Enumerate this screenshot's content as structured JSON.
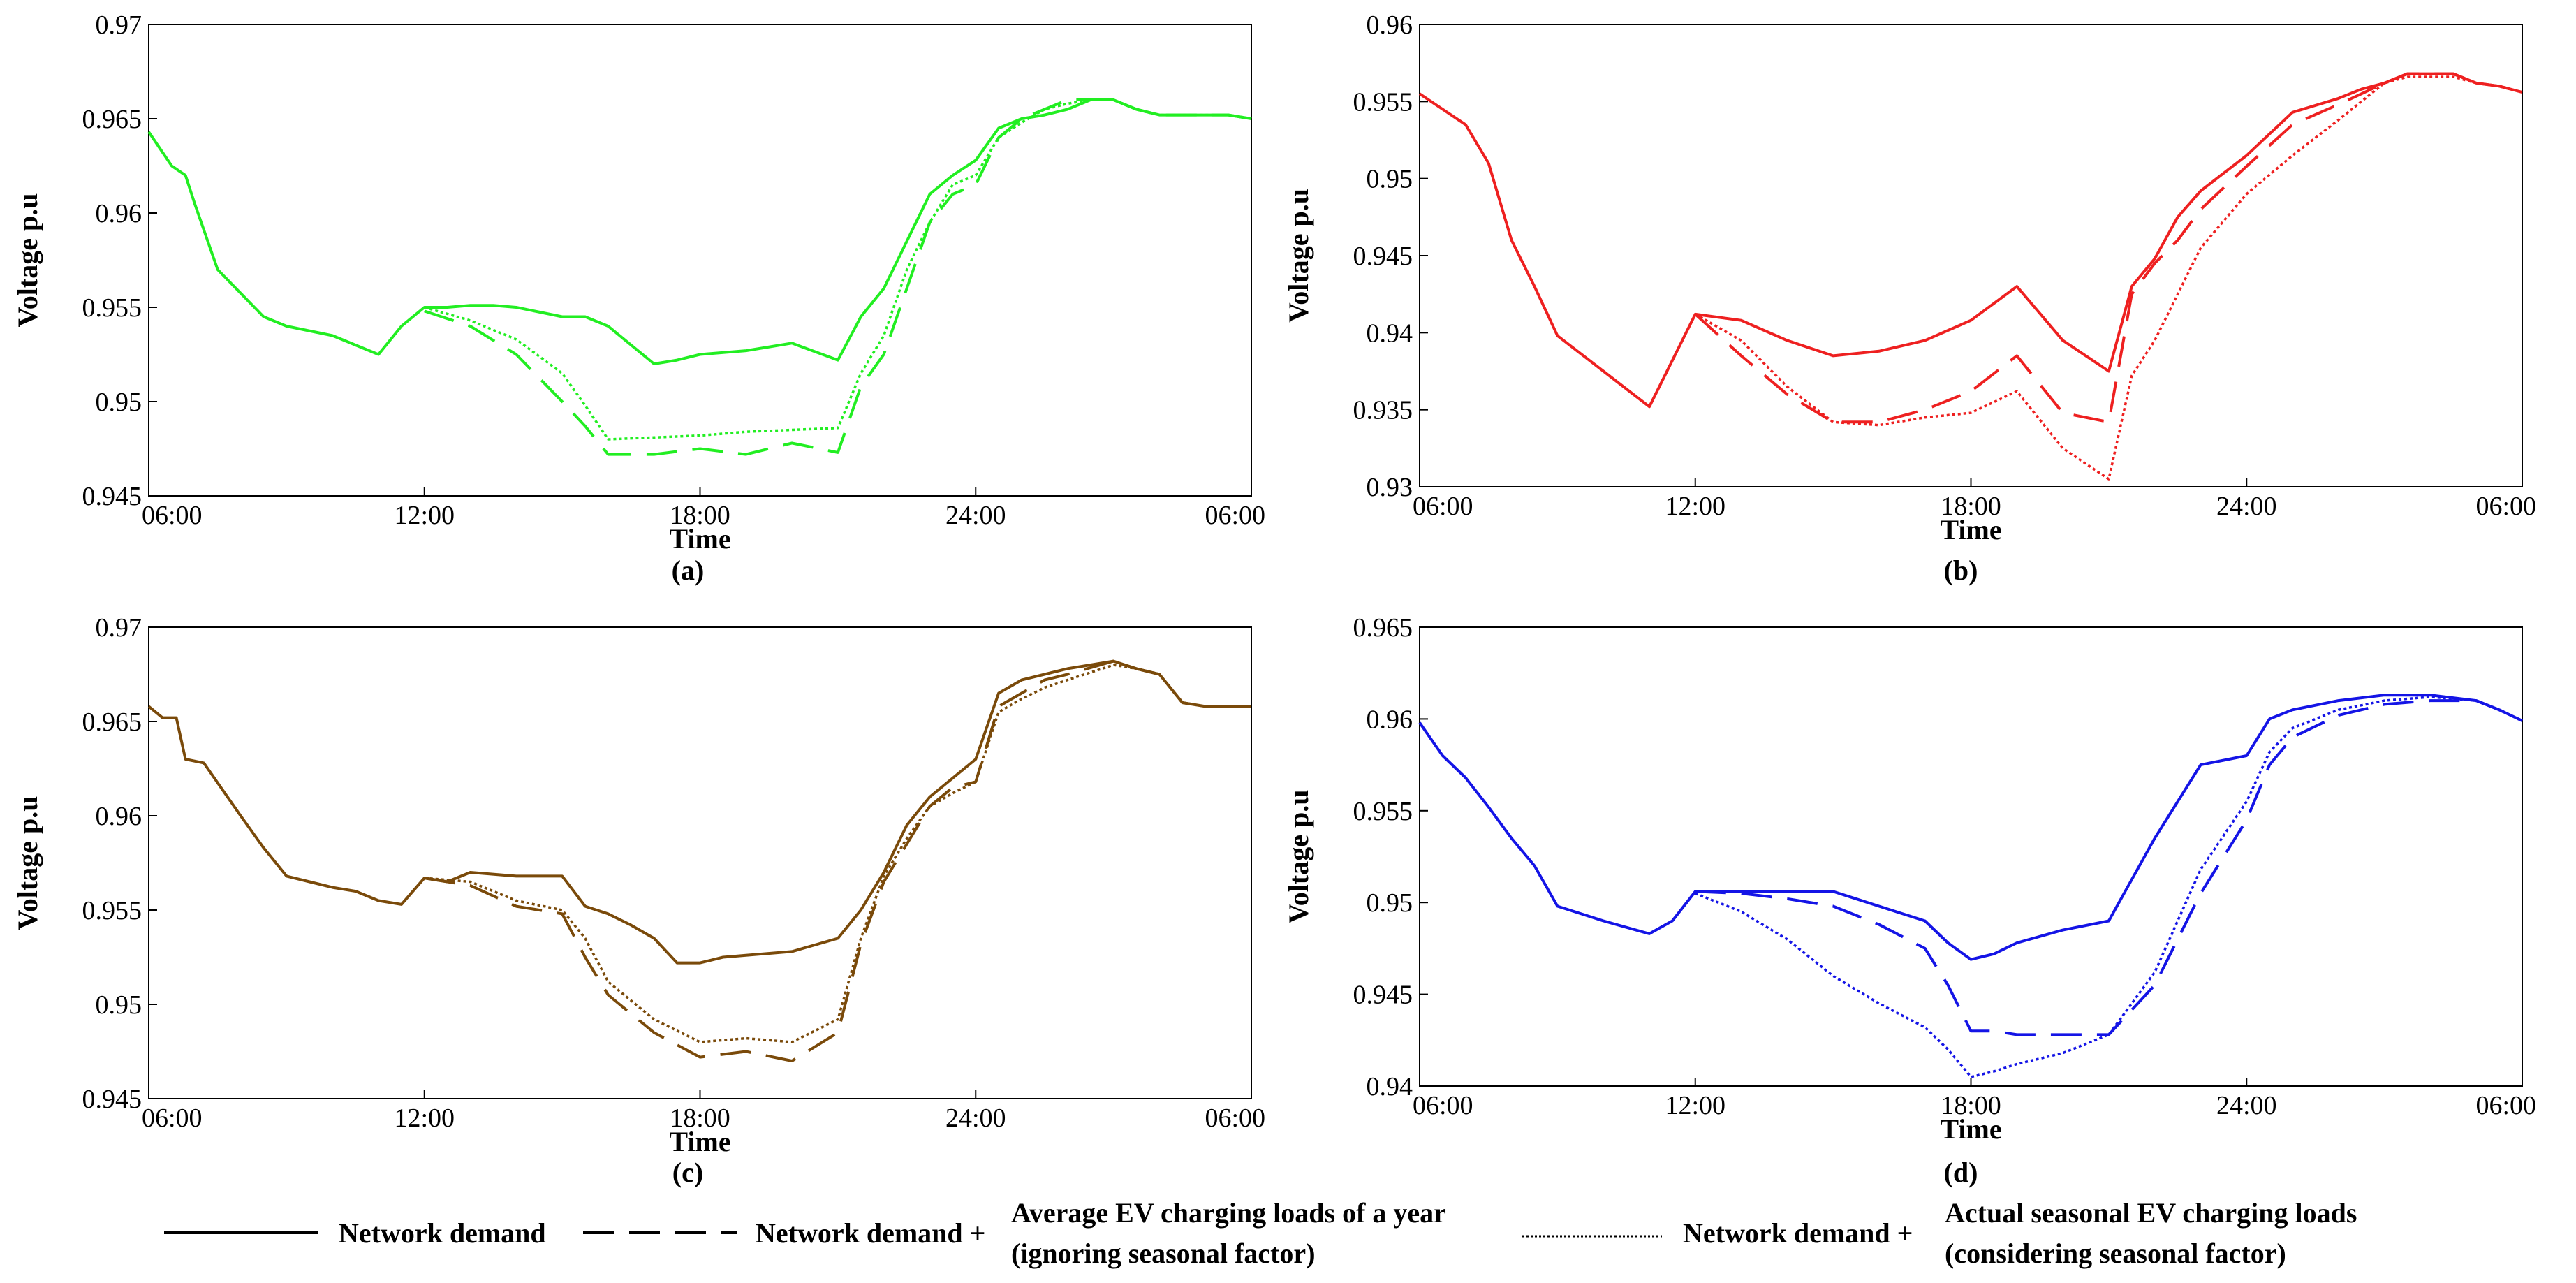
{
  "legend": {
    "item1": {
      "label": "Network demand"
    },
    "item2": {
      "prefix": "Network demand +",
      "line1": "Average EV charging loads of a year",
      "line2": "(ignoring seasonal factor)"
    },
    "item3": {
      "prefix": "Network demand +",
      "line1": "Actual seasonal EV charging loads",
      "line2": "(considering seasonal factor)"
    }
  },
  "chart_data": [
    {
      "type": "line",
      "panel": "(a)",
      "color": "#22ee22",
      "xlabel": "Time",
      "ylabel": "Voltage  p.u",
      "xticks": [
        "06:00",
        "12:00",
        "18:00",
        "24:00",
        "06:00"
      ],
      "xlim": [
        0,
        24
      ],
      "ylim": [
        0.945,
        0.97
      ],
      "yticks": [
        "0.945",
        "0.95",
        "0.955",
        "0.96",
        "0.965",
        "0.97"
      ],
      "series": [
        {
          "name": "Network demand",
          "dash": "solid",
          "x": [
            0,
            0.5,
            0.8,
            1,
            1.5,
            2.5,
            3,
            4,
            5,
            5.5,
            6,
            6.5,
            7,
            7.5,
            8,
            9,
            9.5,
            10,
            10.5,
            11,
            11.5,
            12,
            13,
            14,
            15,
            15.5,
            16,
            16.5,
            17,
            17.5,
            18,
            18.5,
            19,
            19.5,
            20,
            20.5,
            21,
            21.5,
            22,
            22.5,
            23,
            23.5,
            24
          ],
          "y": [
            0.9643,
            0.9625,
            0.962,
            0.9605,
            0.957,
            0.9545,
            0.954,
            0.9535,
            0.9525,
            0.954,
            0.955,
            0.955,
            0.9551,
            0.9551,
            0.955,
            0.9545,
            0.9545,
            0.954,
            0.953,
            0.952,
            0.9522,
            0.9525,
            0.9527,
            0.9531,
            0.9522,
            0.9545,
            0.956,
            0.9585,
            0.961,
            0.962,
            0.9628,
            0.9645,
            0.965,
            0.9652,
            0.9655,
            0.966,
            0.966,
            0.9655,
            0.9652,
            0.9652,
            0.9652,
            0.9652,
            0.965
          ]
        },
        {
          "name": "Average EV charging loads of a year",
          "dash": "dashed",
          "x": [
            6,
            7,
            8,
            9,
            9.5,
            10,
            11,
            12,
            13,
            14,
            15,
            15.5,
            16,
            16.5,
            17,
            17.5,
            18,
            18.5,
            19,
            19.5,
            20,
            20.5,
            21,
            21.5,
            22,
            22.5,
            23,
            23.5,
            24
          ],
          "y": [
            0.9548,
            0.954,
            0.9525,
            0.95,
            0.9487,
            0.9472,
            0.9472,
            0.9475,
            0.9472,
            0.9478,
            0.9473,
            0.9508,
            0.9525,
            0.956,
            0.9595,
            0.961,
            0.9615,
            0.964,
            0.965,
            0.9655,
            0.966,
            0.966,
            0.966,
            0.9655,
            0.9652,
            0.9652,
            0.9652,
            0.9652,
            0.965
          ]
        },
        {
          "name": "Actual seasonal EV charging loads",
          "dash": "dotted",
          "x": [
            6,
            7,
            8,
            9,
            9.5,
            10,
            11,
            12,
            13,
            14,
            15,
            15.5,
            16,
            16.5,
            17,
            17.5,
            18,
            18.5,
            19,
            19.5,
            20,
            20.5,
            21,
            21.5,
            22,
            22.5,
            23,
            23.5,
            24
          ],
          "y": [
            0.955,
            0.9543,
            0.9533,
            0.9515,
            0.9498,
            0.948,
            0.9481,
            0.9482,
            0.9484,
            0.9485,
            0.9486,
            0.9515,
            0.9535,
            0.957,
            0.9595,
            0.9615,
            0.962,
            0.964,
            0.9648,
            0.9655,
            0.9658,
            0.966,
            0.966,
            0.9655,
            0.9652,
            0.9652,
            0.9652,
            0.9652,
            0.965
          ]
        }
      ]
    },
    {
      "type": "line",
      "panel": "(b)",
      "color": "#ee2020",
      "xlabel": "Time",
      "ylabel": "Voltage  p.u",
      "xticks": [
        "06:00",
        "12:00",
        "18:00",
        "24:00",
        "06:00"
      ],
      "xlim": [
        0,
        24
      ],
      "ylim": [
        0.93,
        0.96
      ],
      "yticks": [
        "0.93",
        "0.935",
        "0.94",
        "0.945",
        "0.95",
        "0.955",
        "0.96"
      ],
      "series": [
        {
          "name": "Network demand",
          "dash": "solid",
          "x": [
            0,
            0.5,
            1,
            1.5,
            2,
            2.5,
            3,
            4,
            5,
            6,
            7,
            8,
            9,
            10,
            11,
            12,
            13,
            14,
            15,
            15.5,
            16,
            16.5,
            17,
            18,
            19,
            20,
            20.5,
            21,
            21.5,
            22,
            22.5,
            23,
            23.5,
            24
          ],
          "y": [
            0.9555,
            0.9545,
            0.9535,
            0.951,
            0.946,
            0.943,
            0.9398,
            0.9375,
            0.9352,
            0.9412,
            0.9408,
            0.9395,
            0.9385,
            0.9388,
            0.9395,
            0.9408,
            0.943,
            0.9395,
            0.9375,
            0.943,
            0.9448,
            0.9475,
            0.9492,
            0.9515,
            0.9543,
            0.9552,
            0.9558,
            0.9562,
            0.9568,
            0.9568,
            0.9568,
            0.9562,
            0.956,
            0.9556
          ]
        },
        {
          "name": "Average EV charging loads of a year",
          "dash": "dashed",
          "x": [
            6,
            7,
            8,
            9,
            10,
            11,
            12,
            13,
            14,
            15,
            15.5,
            16,
            16.5,
            17,
            18,
            19,
            20,
            20.5,
            21,
            21.5,
            22,
            22.5,
            23,
            23.5,
            24
          ],
          "y": [
            0.9412,
            0.9385,
            0.936,
            0.9342,
            0.9342,
            0.935,
            0.9362,
            0.9385,
            0.9348,
            0.9342,
            0.9425,
            0.9445,
            0.946,
            0.948,
            0.9508,
            0.9535,
            0.9548,
            0.9555,
            0.9562,
            0.9568,
            0.9568,
            0.9568,
            0.9562,
            0.956,
            0.9556
          ]
        },
        {
          "name": "Actual seasonal EV charging loads",
          "dash": "dotted",
          "x": [
            6,
            7,
            8,
            9,
            10,
            11,
            12,
            13,
            14,
            15,
            15.5,
            16,
            16.5,
            17,
            18,
            19,
            20,
            20.5,
            21,
            21.5,
            22,
            22.5,
            23,
            23.5,
            24
          ],
          "y": [
            0.9412,
            0.9395,
            0.9365,
            0.9342,
            0.934,
            0.9345,
            0.9348,
            0.9362,
            0.9325,
            0.9305,
            0.9372,
            0.9395,
            0.9425,
            0.9455,
            0.949,
            0.9515,
            0.9538,
            0.955,
            0.9562,
            0.9566,
            0.9566,
            0.9566,
            0.9562,
            0.956,
            0.9556
          ]
        }
      ]
    },
    {
      "type": "line",
      "panel": "(c)",
      "color": "#7a4a0a",
      "xlabel": "Time",
      "ylabel": "Voltage  p.u",
      "xticks": [
        "06:00",
        "12:00",
        "18:00",
        "24:00",
        "06:00"
      ],
      "xlim": [
        0,
        24
      ],
      "ylim": [
        0.945,
        0.97
      ],
      "yticks": [
        "0.945",
        "0.95",
        "0.955",
        "0.96",
        "0.965",
        "0.97"
      ],
      "series": [
        {
          "name": "Network demand",
          "dash": "solid",
          "x": [
            0,
            0.3,
            0.6,
            0.8,
            1.2,
            2,
            2.5,
            3,
            3.5,
            4,
            4.5,
            5,
            5.5,
            6,
            6.5,
            7,
            8,
            9,
            9.5,
            10,
            10.5,
            11,
            11.5,
            12,
            12.5,
            13,
            14,
            15,
            15.5,
            16,
            16.5,
            17,
            17.5,
            18,
            18.5,
            19,
            19.5,
            20,
            21,
            21.5,
            22,
            22.5,
            23,
            23.5,
            24
          ],
          "y": [
            0.9658,
            0.9652,
            0.9652,
            0.963,
            0.9628,
            0.96,
            0.9583,
            0.9568,
            0.9565,
            0.9562,
            0.956,
            0.9555,
            0.9553,
            0.9567,
            0.9565,
            0.957,
            0.9568,
            0.9568,
            0.9552,
            0.9548,
            0.9542,
            0.9535,
            0.9522,
            0.9522,
            0.9525,
            0.9526,
            0.9528,
            0.9535,
            0.955,
            0.957,
            0.9595,
            0.961,
            0.962,
            0.963,
            0.9665,
            0.9672,
            0.9675,
            0.9678,
            0.9682,
            0.9678,
            0.9675,
            0.966,
            0.9658,
            0.9658,
            0.9658
          ]
        },
        {
          "name": "Average EV charging loads of a year",
          "dash": "dashed",
          "x": [
            6,
            7,
            8,
            9,
            9.5,
            10,
            11,
            12,
            13,
            14,
            15,
            15.5,
            16,
            16.5,
            17,
            17.5,
            18,
            18.5,
            19,
            19.5,
            20,
            21,
            21.5,
            22,
            22.5,
            23,
            23.5,
            24
          ],
          "y": [
            0.9567,
            0.9563,
            0.9552,
            0.9548,
            0.9525,
            0.9505,
            0.9485,
            0.9472,
            0.9475,
            0.947,
            0.9485,
            0.9532,
            0.9565,
            0.9585,
            0.9605,
            0.9615,
            0.9618,
            0.9658,
            0.9665,
            0.9672,
            0.9675,
            0.9682,
            0.9678,
            0.9675,
            0.966,
            0.9658,
            0.9658,
            0.9658
          ]
        },
        {
          "name": "Actual seasonal EV charging loads",
          "dash": "dotted",
          "x": [
            6,
            7,
            8,
            9,
            9.5,
            10,
            11,
            12,
            13,
            14,
            15,
            15.5,
            16,
            16.5,
            17,
            17.5,
            18,
            18.5,
            19,
            19.5,
            20,
            21,
            21.5,
            22,
            22.5,
            23,
            23.5,
            24
          ],
          "y": [
            0.9567,
            0.9565,
            0.9555,
            0.955,
            0.9535,
            0.9512,
            0.9492,
            0.948,
            0.9482,
            0.948,
            0.9492,
            0.9535,
            0.9568,
            0.9588,
            0.9605,
            0.9612,
            0.9618,
            0.9655,
            0.9662,
            0.9668,
            0.9672,
            0.968,
            0.9678,
            0.9675,
            0.966,
            0.9658,
            0.9658,
            0.9658
          ]
        }
      ]
    },
    {
      "type": "line",
      "panel": "(d)",
      "color": "#1414e6",
      "xlabel": "Time",
      "ylabel": "Voltage  p.u",
      "xticks": [
        "06:00",
        "12:00",
        "18:00",
        "24:00",
        "06:00"
      ],
      "xlim": [
        0,
        24
      ],
      "ylim": [
        0.94,
        0.965
      ],
      "yticks": [
        "0.94",
        "0.945",
        "0.95",
        "0.955",
        "0.96",
        "0.965"
      ],
      "series": [
        {
          "name": "Network demand",
          "dash": "solid",
          "x": [
            0,
            0.5,
            1,
            1.5,
            2,
            2.5,
            3,
            4,
            5,
            5.5,
            6,
            7,
            8,
            9,
            10,
            11,
            11.5,
            12,
            12.5,
            13,
            14,
            15,
            16,
            17,
            18,
            18.5,
            19,
            20,
            21,
            22,
            23,
            23.5,
            24
          ],
          "y": [
            0.9598,
            0.958,
            0.9568,
            0.9552,
            0.9535,
            0.952,
            0.9498,
            0.949,
            0.9483,
            0.949,
            0.9506,
            0.9506,
            0.9506,
            0.9506,
            0.9498,
            0.949,
            0.9478,
            0.9469,
            0.9472,
            0.9478,
            0.9485,
            0.949,
            0.9535,
            0.9575,
            0.958,
            0.96,
            0.9605,
            0.961,
            0.9613,
            0.9613,
            0.961,
            0.9605,
            0.9599
          ]
        },
        {
          "name": "Average EV charging loads of a year",
          "dash": "dashed",
          "x": [
            6,
            7,
            8,
            9,
            10,
            11,
            11.5,
            12,
            12.5,
            13,
            14,
            15,
            16,
            17,
            18,
            18.5,
            19,
            20,
            21,
            22,
            23,
            23.5,
            24
          ],
          "y": [
            0.9506,
            0.9505,
            0.9502,
            0.9498,
            0.9488,
            0.9475,
            0.9455,
            0.943,
            0.943,
            0.9428,
            0.9428,
            0.9428,
            0.9455,
            0.9505,
            0.9545,
            0.9575,
            0.959,
            0.9602,
            0.9608,
            0.961,
            0.961,
            0.9605,
            0.9599
          ]
        },
        {
          "name": "Actual seasonal EV charging loads",
          "dash": "dotted",
          "x": [
            6,
            7,
            8,
            9,
            10,
            11,
            11.5,
            12,
            12.5,
            13,
            14,
            15,
            16,
            17,
            18,
            18.5,
            19,
            20,
            21,
            22,
            23,
            23.5,
            24
          ],
          "y": [
            0.9505,
            0.9495,
            0.948,
            0.946,
            0.9445,
            0.9432,
            0.942,
            0.9405,
            0.9408,
            0.9412,
            0.9418,
            0.9428,
            0.9462,
            0.9518,
            0.9555,
            0.9582,
            0.9595,
            0.9605,
            0.961,
            0.9612,
            0.961,
            0.9605,
            0.9599
          ]
        }
      ]
    }
  ]
}
